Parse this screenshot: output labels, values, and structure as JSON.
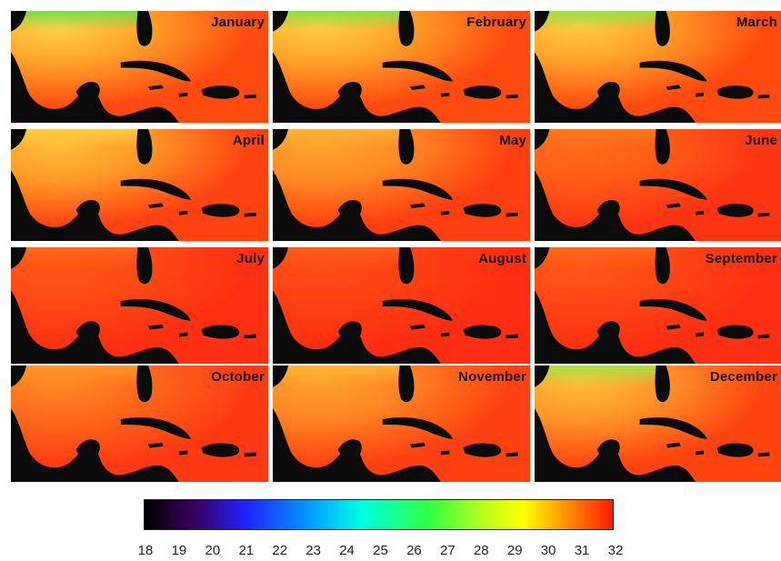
{
  "months": [
    "January",
    "February",
    "March",
    "April",
    "May",
    "June",
    "July",
    "August",
    "September",
    "October",
    "November",
    "December"
  ],
  "panel_palettes": [
    {
      "base": "#ff4a0f",
      "warm": "#ffa42a",
      "cool": "#ffd34a",
      "edge": "#66e24a"
    },
    {
      "base": "#ff4a0f",
      "warm": "#ffa22a",
      "cool": "#ffcf45",
      "edge": "#7ee54a"
    },
    {
      "base": "#ff4a0f",
      "warm": "#ffa02a",
      "cool": "#ffcd42",
      "edge": "#8fe44a"
    },
    {
      "base": "#ff4210",
      "warm": "#ff9a28",
      "cool": "#ffbf38",
      "edge": "#ffd040"
    },
    {
      "base": "#ff3f10",
      "warm": "#ff8a24",
      "cool": "#ffa82e",
      "edge": "#ffb238"
    },
    {
      "base": "#ff3412",
      "warm": "#ff5c18",
      "cool": "#ff6e1c",
      "edge": "#ff7a1e"
    },
    {
      "base": "#ff3012",
      "warm": "#ff4a14",
      "cool": "#ff5616",
      "edge": "#ff6a1a"
    },
    {
      "base": "#ff2e12",
      "warm": "#ff4212",
      "cool": "#ff4e14",
      "edge": "#ff6018"
    },
    {
      "base": "#ff3012",
      "warm": "#ff4814",
      "cool": "#ff5818",
      "edge": "#ff6a1a"
    },
    {
      "base": "#ff3a12",
      "warm": "#ff6a1c",
      "cool": "#ff8a24",
      "edge": "#ff9a28"
    },
    {
      "base": "#ff4010",
      "warm": "#ff8424",
      "cool": "#ffa42c",
      "edge": "#ffb836"
    },
    {
      "base": "#ff4410",
      "warm": "#ff9628",
      "cool": "#ffc03a",
      "edge": "#a0e64a"
    }
  ],
  "land_color": "#0a0a0a",
  "colorbar": {
    "ticks": [
      "18",
      "19",
      "20",
      "21",
      "22",
      "23",
      "24",
      "25",
      "26",
      "27",
      "28",
      "29",
      "30",
      "31",
      "32"
    ],
    "min": 18,
    "max": 32,
    "stops": [
      {
        "value": 18,
        "color": "#000000"
      },
      {
        "value": 19.5,
        "color": "#3a0060"
      },
      {
        "value": 21,
        "color": "#2020ff"
      },
      {
        "value": 23,
        "color": "#00a0ff"
      },
      {
        "value": 24.5,
        "color": "#00ffe0"
      },
      {
        "value": 26.5,
        "color": "#30ff40"
      },
      {
        "value": 28,
        "color": "#b0ff20"
      },
      {
        "value": 29.3,
        "color": "#ffff00"
      },
      {
        "value": 30.5,
        "color": "#ff9a00"
      },
      {
        "value": 32,
        "color": "#ff1a00"
      }
    ]
  }
}
